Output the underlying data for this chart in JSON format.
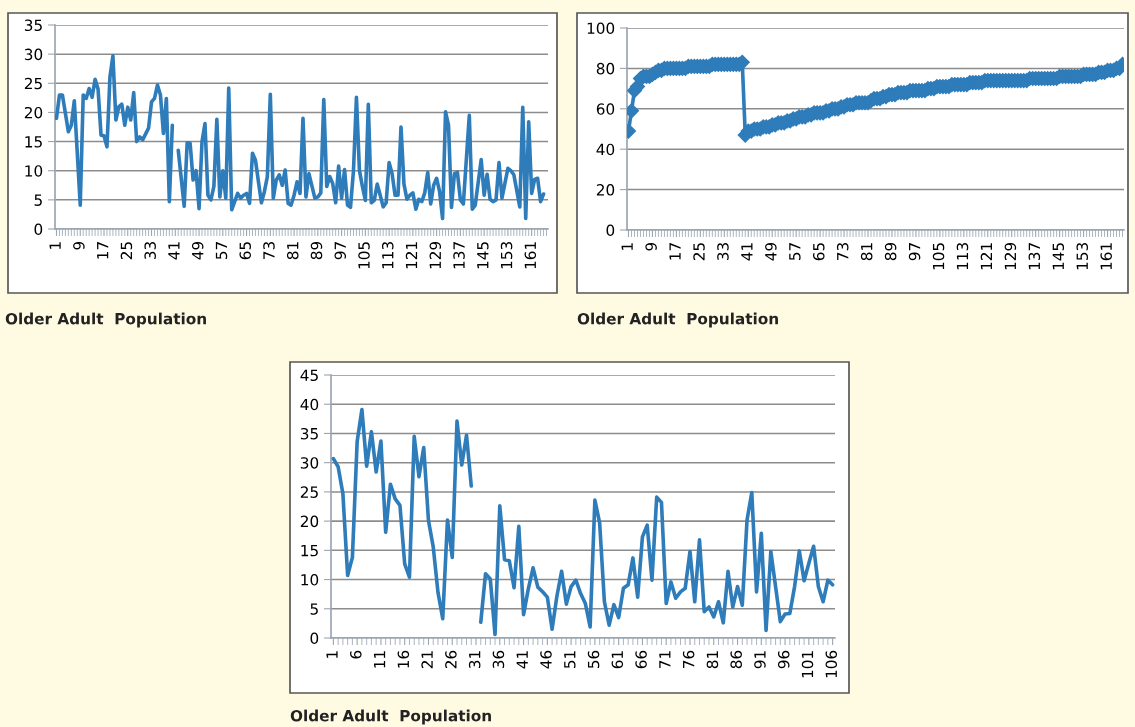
{
  "chart_data": [
    {
      "type": "line",
      "color": "#2e7cba",
      "grid": "y",
      "marker": "none",
      "xlim": [
        0.5,
        166.5
      ],
      "ylim": [
        0,
        35
      ],
      "xticks": [
        1,
        9,
        17,
        25,
        33,
        41,
        49,
        57,
        65,
        73,
        81,
        89,
        97,
        105,
        113,
        121,
        129,
        137,
        145,
        153,
        161
      ],
      "yticks": [
        0,
        5,
        10,
        15,
        20,
        25,
        30,
        35
      ],
      "annotations": [
        "Older Adult  Population"
      ],
      "x": [
        1,
        2,
        3,
        5,
        6,
        7,
        9,
        10,
        11,
        12,
        13,
        14,
        15,
        16,
        17,
        18,
        19,
        20,
        21,
        22,
        23,
        24,
        25,
        26,
        27,
        28,
        29,
        30,
        32,
        33,
        34,
        35,
        36,
        37,
        38,
        39,
        40,
        41,
        42,
        44,
        45,
        46,
        47,
        48,
        49,
        50,
        51,
        52,
        53,
        54,
        55,
        56,
        57,
        58,
        59,
        60,
        61,
        62,
        63,
        64,
        65,
        66,
        67,
        68,
        69,
        70,
        71,
        72,
        73,
        74,
        75,
        76,
        77,
        78,
        79,
        80,
        81,
        82,
        83,
        84,
        85,
        86,
        88,
        89,
        90,
        91,
        92,
        93,
        94,
        95,
        96,
        97,
        98,
        99,
        100,
        101,
        102,
        103,
        104,
        105,
        106,
        107,
        108,
        109,
        110,
        111,
        112,
        113,
        114,
        115,
        116,
        117,
        118,
        119,
        120,
        121,
        122,
        123,
        124,
        125,
        126,
        127,
        128,
        129,
        130,
        131,
        132,
        133,
        134,
        135,
        136,
        137,
        138,
        140,
        141,
        142,
        144,
        145,
        146,
        147,
        148,
        149,
        150,
        151,
        153,
        154,
        155,
        157,
        158,
        159,
        160,
        161,
        162,
        163,
        164,
        165
      ],
      "values": [
        19,
        23,
        23,
        16.7,
        17.8,
        22,
        4.1,
        23,
        22.4,
        24.1,
        22.6,
        25.7,
        24,
        16.1,
        16,
        14.1,
        26.1,
        29.7,
        18.7,
        21,
        21.4,
        17.8,
        20.9,
        18.7,
        23.4,
        15,
        15.8,
        15.3,
        17.3,
        21.8,
        22.4,
        24.7,
        23,
        16.4,
        22.4,
        4.7,
        17.8,
        null,
        13.5,
        3.9,
        14.8,
        14.7,
        8.4,
        10,
        3.5,
        15,
        18.1,
        5.8,
        5,
        7.3,
        18.8,
        5.5,
        10,
        5.3,
        24.2,
        3.3,
        4.7,
        6.1,
        5.3,
        5.8,
        6.1,
        4.4,
        13,
        11.8,
        8.1,
        4.5,
        6.4,
        9,
        23.1,
        5.3,
        8.4,
        9.3,
        7.5,
        10.1,
        4.4,
        4.1,
        5.8,
        8.1,
        6.1,
        19,
        5.5,
        9.5,
        5.3,
        5.5,
        6.2,
        22.2,
        7.3,
        9,
        7.8,
        4.5,
        10.8,
        5.3,
        10.2,
        4.1,
        3.7,
        10,
        22.6,
        10.1,
        7.3,
        4.9,
        21.4,
        4.5,
        4.9,
        7.7,
        5.8,
        3.8,
        4.5,
        11.4,
        9.5,
        5.8,
        5.8,
        17.5,
        7.7,
        5.1,
        5.8,
        6.2,
        3.4,
        5.1,
        4.7,
        6.2,
        9.7,
        4.3,
        7.5,
        8.7,
        6.4,
        1.8,
        20.1,
        17.8,
        3.7,
        9.5,
        9.7,
        5,
        4.3,
        19.5,
        3.4,
        4.1,
        11.9,
        5.8,
        9.4,
        5.1,
        4.7,
        5,
        11.4,
        5.3,
        10.4,
        10,
        9.3,
        3.8,
        20.9,
        1.8,
        18.4,
        6.1,
        8.5,
        8.7,
        4.7,
        6
      ]
    },
    {
      "type": "line",
      "color": "#2e7cba",
      "grid": "y",
      "marker": "diamond",
      "xlim": [
        0.5,
        166.5
      ],
      "ylim": [
        0,
        100
      ],
      "xticks": [
        1,
        9,
        17,
        25,
        33,
        41,
        49,
        57,
        65,
        73,
        81,
        89,
        97,
        105,
        113,
        121,
        129,
        137,
        145,
        153,
        161
      ],
      "yticks": [
        0,
        20,
        40,
        60,
        80,
        100
      ],
      "annotations": [
        "Older Adult  Population"
      ],
      "x": [
        1,
        2,
        3,
        4,
        5,
        6,
        7,
        8,
        9,
        10,
        11,
        12,
        13,
        14,
        15,
        16,
        17,
        18,
        19,
        20,
        21,
        22,
        23,
        24,
        25,
        26,
        27,
        28,
        29,
        30,
        31,
        32,
        33,
        34,
        35,
        36,
        37,
        38,
        39,
        40,
        41,
        42,
        43,
        44,
        45,
        46,
        47,
        48,
        49,
        50,
        51,
        52,
        53,
        54,
        55,
        56,
        57,
        58,
        59,
        60,
        61,
        62,
        63,
        64,
        65,
        66,
        67,
        68,
        69,
        70,
        71,
        72,
        73,
        74,
        75,
        76,
        77,
        78,
        79,
        80,
        81,
        82,
        83,
        84,
        85,
        86,
        87,
        88,
        89,
        90,
        91,
        92,
        93,
        94,
        95,
        96,
        97,
        98,
        99,
        100,
        101,
        102,
        103,
        104,
        105,
        106,
        107,
        108,
        109,
        110,
        111,
        112,
        113,
        114,
        115,
        116,
        117,
        118,
        119,
        120,
        121,
        122,
        123,
        124,
        125,
        126,
        127,
        128,
        129,
        130,
        131,
        132,
        133,
        134,
        135,
        136,
        137,
        138,
        139,
        140,
        141,
        142,
        143,
        144,
        145,
        146,
        147,
        148,
        149,
        150,
        151,
        152,
        153,
        154,
        155,
        156,
        157,
        158,
        159,
        160,
        161,
        162,
        163,
        164,
        165,
        166
      ],
      "values": [
        49,
        59,
        69,
        71,
        75,
        76,
        76,
        76,
        77,
        78,
        79,
        79,
        80,
        80,
        80,
        80,
        80,
        80,
        80,
        80,
        81,
        81,
        81,
        81,
        81,
        81,
        81,
        81,
        82,
        82,
        82,
        82,
        82,
        82,
        82,
        82,
        82,
        82,
        83,
        47,
        49,
        49,
        50,
        50,
        50,
        51,
        51,
        51,
        52,
        52,
        53,
        53,
        53,
        54,
        54,
        55,
        55,
        56,
        56,
        56,
        57,
        57,
        58,
        58,
        58,
        58,
        59,
        59,
        60,
        60,
        60,
        61,
        61,
        62,
        62,
        62,
        63,
        63,
        63,
        63,
        63,
        64,
        65,
        65,
        65,
        66,
        66,
        67,
        67,
        67,
        68,
        68,
        68,
        68,
        69,
        69,
        69,
        69,
        69,
        69,
        70,
        70,
        70,
        71,
        71,
        71,
        71,
        71,
        72,
        72,
        72,
        72,
        72,
        72,
        73,
        73,
        73,
        73,
        73,
        74,
        74,
        74,
        74,
        74,
        74,
        74,
        74,
        74,
        74,
        74,
        74,
        74,
        74,
        74,
        75,
        75,
        75,
        75,
        75,
        75,
        75,
        75,
        75,
        75,
        76,
        76,
        76,
        76,
        76,
        76,
        76,
        76,
        77,
        77,
        77,
        77,
        77,
        78,
        78,
        78,
        79,
        79,
        79,
        80,
        80,
        82
      ]
    },
    {
      "type": "line",
      "color": "#2e7cba",
      "grid": "y",
      "marker": "none",
      "xlim": [
        0.5,
        106.5
      ],
      "ylim": [
        0,
        45
      ],
      "xticks": [
        1,
        6,
        11,
        16,
        21,
        26,
        31,
        36,
        41,
        46,
        51,
        56,
        61,
        66,
        71,
        76,
        81,
        86,
        91,
        96,
        101,
        106
      ],
      "yticks": [
        0,
        5,
        10,
        15,
        20,
        25,
        30,
        35,
        40,
        45
      ],
      "annotations": [
        "Older Adult  Population"
      ],
      "x": [
        1,
        2,
        3,
        4,
        5,
        6,
        7,
        8,
        9,
        10,
        11,
        12,
        13,
        14,
        15,
        16,
        17,
        18,
        19,
        20,
        21,
        22,
        23,
        24,
        25,
        26,
        27,
        28,
        29,
        30,
        31,
        32,
        33,
        34,
        35,
        36,
        37,
        38,
        39,
        40,
        41,
        42,
        43,
        44,
        45,
        46,
        47,
        48,
        49,
        50,
        51,
        52,
        53,
        54,
        55,
        56,
        57,
        58,
        59,
        60,
        61,
        62,
        63,
        64,
        65,
        66,
        67,
        68,
        69,
        70,
        71,
        72,
        73,
        74,
        75,
        76,
        77,
        78,
        79,
        80,
        81,
        82,
        83,
        84,
        85,
        86,
        87,
        88,
        89,
        90,
        91,
        92,
        93,
        94,
        95,
        96,
        97,
        98,
        99,
        100,
        101,
        102,
        103,
        104,
        105,
        106
      ],
      "values": [
        30.7,
        29.3,
        24.7,
        10.7,
        13.8,
        33.6,
        39.1,
        29.4,
        35.3,
        28.4,
        33.7,
        18.1,
        26.3,
        23.8,
        22.7,
        12.7,
        10.4,
        34.5,
        27.6,
        32.6,
        20.1,
        15.6,
        7.8,
        3.3,
        20.2,
        13.8,
        37.1,
        29.6,
        34.7,
        26,
        null,
        2.7,
        11,
        10.1,
        0.6,
        22.6,
        13.4,
        13.2,
        8.6,
        19.1,
        4,
        8.4,
        12,
        8.7,
        7.9,
        7,
        1.5,
        7.1,
        11.4,
        5.8,
        8.8,
        9.9,
        7.6,
        5.9,
        1.9,
        23.6,
        19.7,
        6.2,
        2.2,
        5.7,
        3.5,
        8.5,
        9.1,
        13.7,
        7,
        17.3,
        19.3,
        9.9,
        24.1,
        23.2,
        5.9,
        9.6,
        6.8,
        7.9,
        8.5,
        14.8,
        6.2,
        16.8,
        4.5,
        5.3,
        3.6,
        6.2,
        2.6,
        11.4,
        5.3,
        8.8,
        5.6,
        20.2,
        24.9,
        7.9,
        17.9,
        1.3,
        14.8,
        8.8,
        2.8,
        4.1,
        4.2,
        8.8,
        14.9,
        9.8,
        12.8,
        15.7,
        8.8,
        6.2,
        9.9,
        9.1
      ]
    }
  ]
}
